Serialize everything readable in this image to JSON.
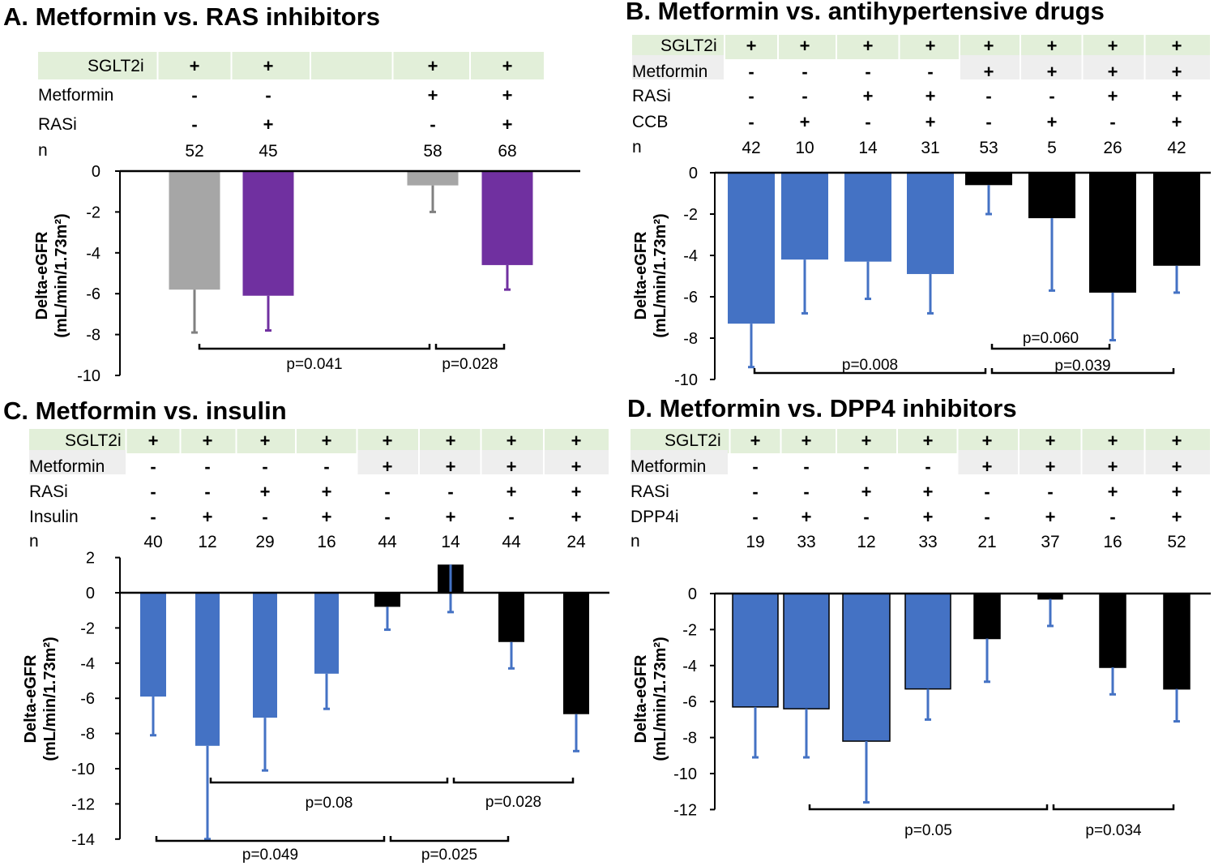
{
  "figure": {
    "colors": {
      "gray": "#a6a6a6",
      "purple": "#7030a0",
      "blue": "#4472c4",
      "black": "#000000",
      "green_band": "#e2efd9",
      "gray_band": "#eeeeee"
    }
  },
  "chart_data": [
    {
      "id": "A",
      "type": "bar",
      "title": "A. Metformin vs. RAS inhibitors",
      "ylabel_line1": "Delta-eGFR",
      "ylabel_line2": "(mL/min/1.73m²)",
      "ylim": [
        -10,
        0
      ],
      "yticks": [
        0,
        -2,
        -4,
        -6,
        -8,
        -10
      ],
      "rows": [
        {
          "label": "SGLT2i",
          "values": [
            "+",
            "+",
            "",
            "+",
            "+"
          ]
        },
        {
          "label": "Metformin",
          "values": [
            "-",
            "-",
            "",
            "+",
            "+"
          ]
        },
        {
          "label": "RASi",
          "values": [
            "-",
            "+",
            "",
            "-",
            "+"
          ]
        },
        {
          "label": "n",
          "values": [
            "52",
            "45",
            "",
            "58",
            "68"
          ]
        }
      ],
      "bars": [
        {
          "value": -5.8,
          "err": 2.1,
          "color": "gray"
        },
        {
          "value": -6.1,
          "err": 1.7,
          "color": "purple"
        },
        null,
        {
          "value": -0.7,
          "err": 1.3,
          "color": "gray"
        },
        {
          "value": -4.6,
          "err": 1.2,
          "color": "purple"
        }
      ],
      "brackets": [
        {
          "from": 0,
          "to": 3,
          "p": "p=0.041"
        },
        {
          "from": 3,
          "to": 4,
          "p": "p=0.028"
        }
      ]
    },
    {
      "id": "B",
      "type": "bar",
      "title": "B. Metformin vs. antihypertensive drugs",
      "ylabel_line1": "Delta-eGFR",
      "ylabel_line2": "(mL/min/1.73m²)",
      "ylim": [
        -10,
        0
      ],
      "yticks": [
        0,
        -2,
        -4,
        -6,
        -8,
        -10
      ],
      "rows": [
        {
          "label": "SGLT2i",
          "values": [
            "+",
            "+",
            "+",
            "+",
            "+",
            "+",
            "+",
            "+"
          ]
        },
        {
          "label": "Metformin",
          "values": [
            "-",
            "-",
            "-",
            "-",
            "+",
            "+",
            "+",
            "+"
          ]
        },
        {
          "label": "RASi",
          "values": [
            "-",
            "-",
            "+",
            "+",
            "-",
            "-",
            "+",
            "+"
          ]
        },
        {
          "label": "CCB",
          "values": [
            "-",
            "+",
            "-",
            "+",
            "-",
            "+",
            "-",
            "+"
          ]
        },
        {
          "label": "n",
          "values": [
            "42",
            "10",
            "14",
            "31",
            "53",
            "5",
            "26",
            "42"
          ]
        }
      ],
      "bars": [
        {
          "value": -7.3,
          "err": 2.1,
          "color": "blue"
        },
        {
          "value": -4.2,
          "err": 2.6,
          "color": "blue"
        },
        {
          "value": -4.3,
          "err": 1.8,
          "color": "blue"
        },
        {
          "value": -4.9,
          "err": 1.9,
          "color": "blue"
        },
        {
          "value": -0.6,
          "err": 1.4,
          "color": "black"
        },
        {
          "value": -2.2,
          "err": 3.5,
          "color": "black"
        },
        {
          "value": -5.8,
          "err": 2.3,
          "color": "black"
        },
        {
          "value": -4.5,
          "err": 1.3,
          "color": "black"
        }
      ],
      "brackets": [
        {
          "from": 0,
          "to": 4,
          "p": "p=0.008"
        },
        {
          "from": 4,
          "to": 6,
          "p": "p=0.060"
        },
        {
          "from": 4,
          "to": 7,
          "p": "p=0.039"
        }
      ]
    },
    {
      "id": "C",
      "type": "bar",
      "title": "C. Metformin vs. insulin",
      "ylabel_line1": "Delta-eGFR",
      "ylabel_line2": "(mL/min/1.73m²)",
      "ylim": [
        -14,
        2
      ],
      "yticks": [
        2,
        0,
        -2,
        -4,
        -6,
        -8,
        -10,
        -12,
        -14
      ],
      "rows": [
        {
          "label": "SGLT2i",
          "values": [
            "+",
            "+",
            "+",
            "+",
            "+",
            "+",
            "+",
            "+"
          ]
        },
        {
          "label": "Metformin",
          "values": [
            "-",
            "-",
            "-",
            "-",
            "+",
            "+",
            "+",
            "+"
          ]
        },
        {
          "label": "RASi",
          "values": [
            "-",
            "-",
            "+",
            "+",
            "-",
            "-",
            "+",
            "+"
          ]
        },
        {
          "label": "Insulin",
          "values": [
            "-",
            "+",
            "-",
            "+",
            "-",
            "+",
            "-",
            "+"
          ]
        },
        {
          "label": "n",
          "values": [
            "40",
            "12",
            "29",
            "16",
            "44",
            "14",
            "44",
            "24"
          ]
        }
      ],
      "bars": [
        {
          "value": -5.9,
          "err": 2.2,
          "color": "blue"
        },
        {
          "value": -8.7,
          "err": 5.3,
          "color": "blue"
        },
        {
          "value": -7.1,
          "err": 3.0,
          "color": "blue"
        },
        {
          "value": -4.6,
          "err": 2.0,
          "color": "blue"
        },
        {
          "value": -0.8,
          "err": 1.3,
          "color": "black"
        },
        {
          "value": 1.6,
          "err": 2.7,
          "color": "black"
        },
        {
          "value": -2.8,
          "err": 1.5,
          "color": "black"
        },
        {
          "value": -6.9,
          "err": 2.1,
          "color": "black"
        }
      ],
      "brackets": [
        {
          "from": 1,
          "to": 5,
          "p": "p=0.08"
        },
        {
          "from": 5,
          "to": 7,
          "p": "p=0.028"
        },
        {
          "from": 0,
          "to": 4,
          "p": "p=0.049"
        },
        {
          "from": 4,
          "to": 6,
          "p": "p=0.025"
        }
      ]
    },
    {
      "id": "D",
      "type": "bar",
      "title": "D. Metformin vs. DPP4 inhibitors",
      "ylabel_line1": "Delta-eGFR",
      "ylabel_line2": "(mL/min/1.73m²)",
      "ylim": [
        -12,
        0
      ],
      "yticks": [
        0,
        -2,
        -4,
        -6,
        -8,
        -10,
        -12
      ],
      "rows": [
        {
          "label": "SGLT2i",
          "values": [
            "+",
            "+",
            "+",
            "+",
            "+",
            "+",
            "+",
            "+"
          ]
        },
        {
          "label": "Metformin",
          "values": [
            "-",
            "-",
            "-",
            "-",
            "+",
            "+",
            "+",
            "+"
          ]
        },
        {
          "label": "RASi",
          "values": [
            "-",
            "-",
            "+",
            "+",
            "-",
            "-",
            "+",
            "+"
          ]
        },
        {
          "label": "DPP4i",
          "values": [
            "-",
            "+",
            "-",
            "+",
            "-",
            "+",
            "-",
            "+"
          ]
        },
        {
          "label": "n",
          "values": [
            "19",
            "33",
            "12",
            "33",
            "21",
            "37",
            "16",
            "52"
          ]
        }
      ],
      "bars": [
        {
          "value": -6.3,
          "err": 2.8,
          "color": "blue"
        },
        {
          "value": -6.4,
          "err": 2.7,
          "color": "blue"
        },
        {
          "value": -8.2,
          "err": 3.4,
          "color": "blue"
        },
        {
          "value": -5.3,
          "err": 1.7,
          "color": "blue"
        },
        {
          "value": -2.5,
          "err": 2.4,
          "color": "black"
        },
        {
          "value": -0.3,
          "err": 1.5,
          "color": "black"
        },
        {
          "value": -4.1,
          "err": 1.5,
          "color": "black"
        },
        {
          "value": -5.3,
          "err": 1.8,
          "color": "black"
        }
      ],
      "brackets": [
        {
          "from": 1,
          "to": 5,
          "p": "p=0.05"
        },
        {
          "from": 5,
          "to": 7,
          "p": "p=0.034"
        }
      ]
    }
  ]
}
